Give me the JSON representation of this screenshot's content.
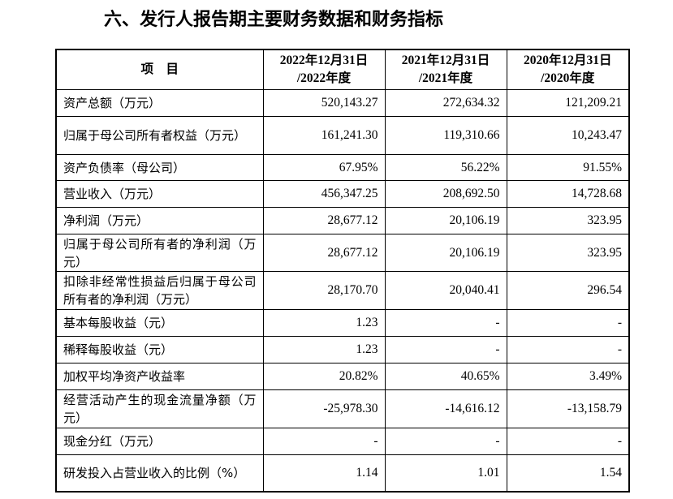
{
  "title": "六、发行人报告期主要财务数据和财务指标",
  "table": {
    "header": [
      "项    目",
      "2022年12月31日\n/2022年度",
      "2021年12月31日\n/2021年度",
      "2020年12月31日\n/2020年度"
    ],
    "rows": [
      [
        "资产总额（万元）",
        "520,143.27",
        "272,634.32",
        "121,209.21"
      ],
      [
        "归属于母公司所有者权益（万元）",
        "161,241.30",
        "119,310.66",
        "10,243.47"
      ],
      [
        "资产负债率（母公司）",
        "67.95%",
        "56.22%",
        "91.55%"
      ],
      [
        "营业收入（万元）",
        "456,347.25",
        "208,692.50",
        "14,728.68"
      ],
      [
        "净利润（万元）",
        "28,677.12",
        "20,106.19",
        "323.95"
      ],
      [
        "归属于母公司所有者的净利润（万元）",
        "28,677.12",
        "20,106.19",
        "323.95"
      ],
      [
        "扣除非经常性损益后归属于母公司所有者的净利润（万元）",
        "28,170.70",
        "20,040.41",
        "296.54"
      ],
      [
        "基本每股收益（元）",
        "1.23",
        "-",
        "-"
      ],
      [
        "稀释每股收益（元）",
        "1.23",
        "-",
        "-"
      ],
      [
        "加权平均净资产收益率",
        "20.82%",
        "40.65%",
        "3.49%"
      ],
      [
        "经营活动产生的现金流量净额（万元）",
        "-25,978.30",
        "-14,616.12",
        "-13,158.79"
      ],
      [
        "现金分红（万元）",
        "-",
        "-",
        "-"
      ],
      [
        "研发投入占营业收入的比例（%）",
        "1.14",
        "1.01",
        "1.54"
      ]
    ]
  }
}
